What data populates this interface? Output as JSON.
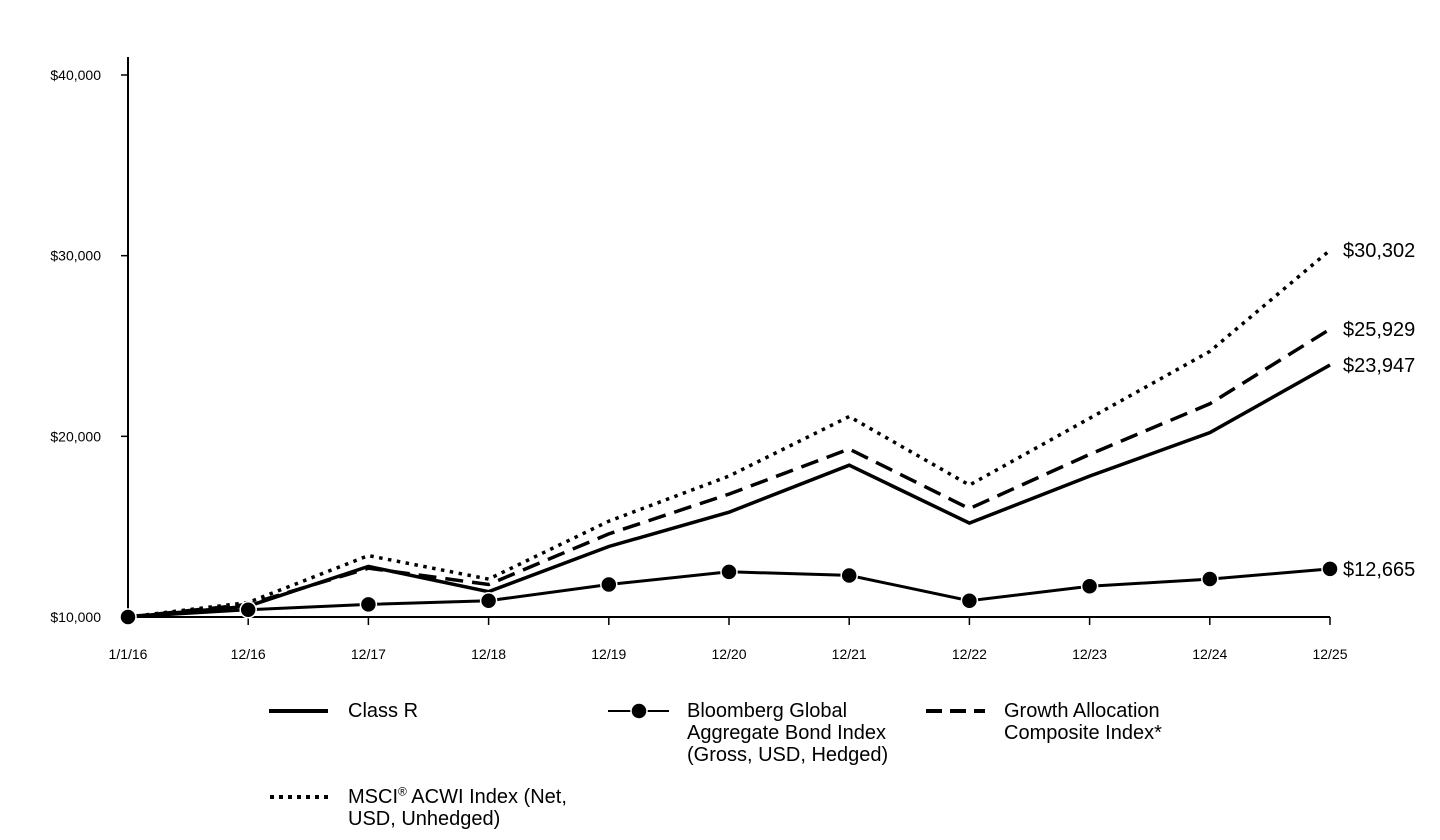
{
  "chart_data": {
    "type": "line",
    "x": [
      "1/1/16",
      "12/16",
      "12/17",
      "12/18",
      "12/19",
      "12/20",
      "12/21",
      "12/22",
      "12/23",
      "12/24",
      "12/25"
    ],
    "y_ticks": [
      "$10,000",
      "$20,000",
      "$30,000",
      "$40,000"
    ],
    "y_tick_values": [
      10000,
      20000,
      30000,
      40000
    ],
    "ylim": [
      10000,
      41000
    ],
    "grid": false,
    "series": [
      {
        "name": "Class R",
        "style": "solid",
        "values": [
          10000,
          10600,
          12800,
          11400,
          13900,
          15800,
          18400,
          15200,
          17800,
          20200,
          23947
        ],
        "end_label": "$23,947"
      },
      {
        "name": "Bloomberg Global Aggregate Bond Index (Gross, USD, Hedged)",
        "style": "solid-markers",
        "values": [
          10000,
          10400,
          10700,
          10900,
          11800,
          12500,
          12300,
          10900,
          11700,
          12100,
          12665
        ],
        "end_label": "$12,665"
      },
      {
        "name": "Growth Allocation Composite Index*",
        "style": "dashed",
        "values": [
          10000,
          10700,
          12700,
          11800,
          14600,
          16800,
          19300,
          16000,
          19000,
          21800,
          25929
        ],
        "end_label": "$25,929"
      },
      {
        "name": "MSCI® ACWI Index (Net, USD, Unhedged)",
        "style": "dotted",
        "values": [
          10000,
          10800,
          13400,
          12100,
          15300,
          17800,
          21100,
          17300,
          21000,
          24700,
          30302
        ],
        "end_label": "$30,302"
      }
    ]
  },
  "legend": {
    "class_r": [
      "Class R"
    ],
    "bond": [
      "Bloomberg Global",
      "Aggregate Bond Index",
      "(Gross, USD, Hedged)"
    ],
    "growth": [
      "Growth Allocation",
      "Composite Index*"
    ],
    "msci_line1_a": "MSCI",
    "msci_sup": "®",
    "msci_line1_b": " ACWI Index (Net,",
    "msci_line2": "USD, Unhedged)"
  }
}
